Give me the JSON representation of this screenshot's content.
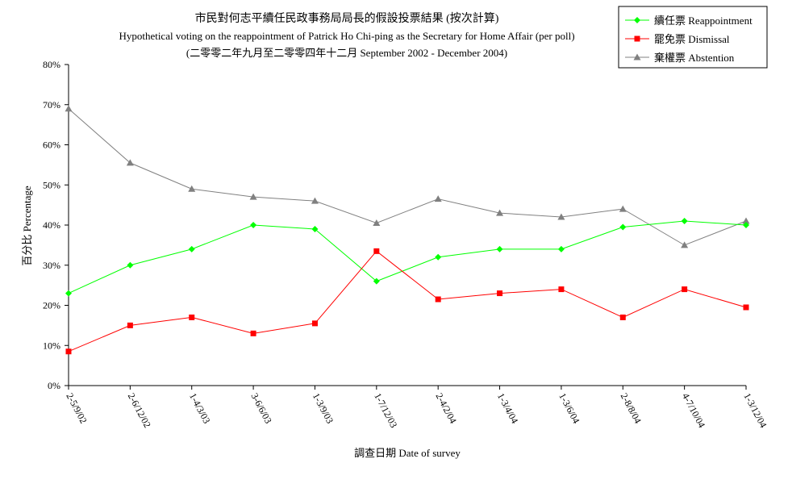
{
  "chart_data": {
    "type": "line",
    "title": "市民對何志平續任民政事務局局長的假設投票結果 (按次計算)",
    "subtitle": "Hypothetical voting on the reappointment of Patrick Ho Chi-ping as the Secretary for Home Affair (per poll)",
    "subtitle2": "(二零零二年九月至二零零四年十二月 September 2002 - December 2004)",
    "xlabel": "調查日期 Date of survey",
    "ylabel": "百分比 Percentage",
    "ylim": [
      0,
      80
    ],
    "yticks": [
      "0%",
      "10%",
      "20%",
      "30%",
      "40%",
      "50%",
      "60%",
      "70%",
      "80%"
    ],
    "categories": [
      "2-5/9/02",
      "2-6/12/02",
      "1-4/3/03",
      "3-6/6/03",
      "1-3/9/03",
      "1-7/12/03",
      "2-4/2/04",
      "1-3/4/04",
      "1-3/6/04",
      "2-8/8/04",
      "4-7/10/04",
      "1-3/12/04"
    ],
    "legend_position": "top-right",
    "series": [
      {
        "name": "續任票 Reappointment",
        "color": "#00ff00",
        "marker": "diamond",
        "values": [
          23,
          30,
          34,
          40,
          39,
          26,
          32,
          34,
          34,
          39.5,
          41,
          40
        ]
      },
      {
        "name": "罷免票 Dismissal",
        "color": "#ff0000",
        "marker": "square",
        "values": [
          8.5,
          15,
          17,
          13,
          15.5,
          33.5,
          21.5,
          23,
          24,
          17,
          24,
          19.5
        ]
      },
      {
        "name": "棄權票 Abstention",
        "color": "#808080",
        "marker": "triangle",
        "values": [
          69,
          55.5,
          49,
          47,
          46,
          40.5,
          46.5,
          43,
          42,
          44,
          35,
          41
        ]
      }
    ]
  }
}
